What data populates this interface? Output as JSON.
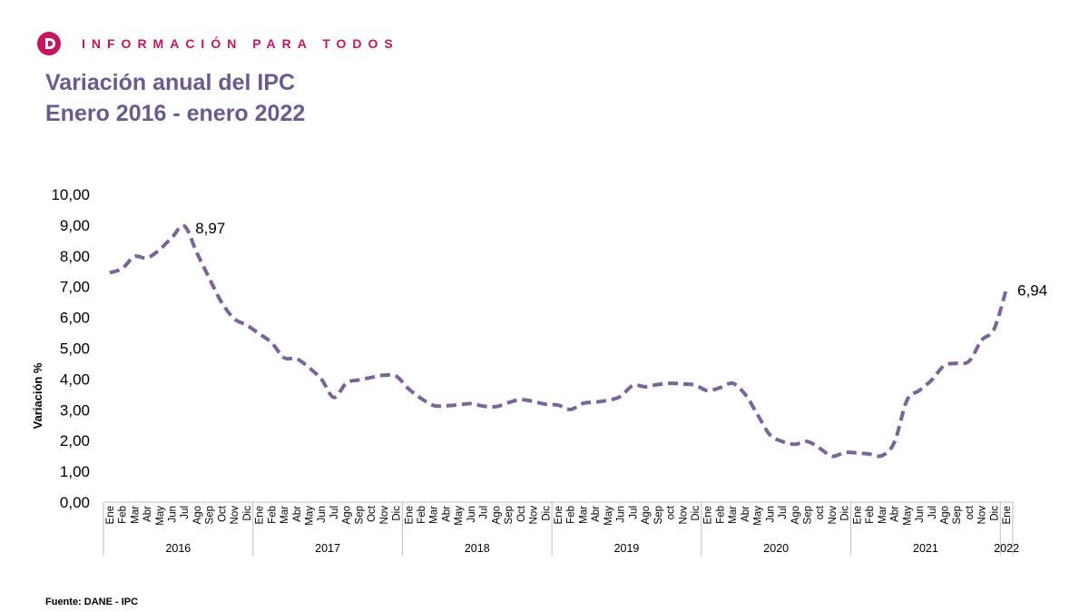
{
  "header": {
    "brand_text": "INFORMACIÓN PARA TODOS",
    "title_line1": "Variación anual del IPC",
    "title_line2": "Enero 2016 - enero 2022",
    "source": "Fuente: DANE - IPC"
  },
  "colors": {
    "brand": "#c2185b",
    "title": "#6b5a8e",
    "line": "#7b6499",
    "axis": "#bfbfbf",
    "text": "#000000"
  },
  "icons": {
    "logo": "dane-logo-icon"
  },
  "chart_data": {
    "type": "line",
    "title": "Variación anual del IPC",
    "subtitle": "Enero 2016 - enero 2022",
    "ylabel": "Variación %",
    "xlabel": "",
    "ylim": [
      0,
      10
    ],
    "yticks": [
      "0,00",
      "1,00",
      "2,00",
      "3,00",
      "4,00",
      "5,00",
      "6,00",
      "7,00",
      "8,00",
      "9,00",
      "10,00"
    ],
    "grid": false,
    "line_style": "dashed",
    "years": [
      {
        "label": "2016",
        "months": [
          "Ene",
          "Feb",
          "Mar",
          "Abr",
          "May",
          "Jun",
          "Jul",
          "Ago",
          "Sep",
          "Oct",
          "Nov",
          "Dic"
        ]
      },
      {
        "label": "2017",
        "months": [
          "Ene",
          "Feb",
          "Mar",
          "Abr",
          "May",
          "Jun",
          "Jul",
          "Ago",
          "Sep",
          "Oct",
          "Nov",
          "Dic"
        ]
      },
      {
        "label": "2018",
        "months": [
          "Ene",
          "Feb",
          "Mar",
          "Abr",
          "May",
          "Jun",
          "Jul",
          "Ago",
          "Sep",
          "Oct",
          "Nov",
          "Dic"
        ]
      },
      {
        "label": "2019",
        "months": [
          "Ene",
          "Feb",
          "Mar",
          "Abr",
          "May",
          "Jun",
          "Jul",
          "Ago",
          "Sep",
          "oct",
          "Nov",
          "Dic"
        ]
      },
      {
        "label": "2020",
        "months": [
          "Ene",
          "Feb",
          "Mar",
          "Abr",
          "May",
          "Jun",
          "Jul",
          "Ago",
          "Sep",
          "oct",
          "Nov",
          "Dic"
        ]
      },
      {
        "label": "2021",
        "months": [
          "Ene",
          "Feb",
          "Mar",
          "Abr",
          "May",
          "Jun",
          "Jul",
          "Ago",
          "Sep",
          "oct",
          "Nov",
          "Dic"
        ]
      },
      {
        "label": "2022",
        "months": [
          "Ene"
        ]
      }
    ],
    "values": [
      7.45,
      7.59,
      7.98,
      7.93,
      8.2,
      8.6,
      8.97,
      8.1,
      7.27,
      6.48,
      5.96,
      5.75,
      5.47,
      5.18,
      4.69,
      4.66,
      4.37,
      3.99,
      3.4,
      3.87,
      3.97,
      4.05,
      4.12,
      4.09,
      3.68,
      3.37,
      3.14,
      3.13,
      3.16,
      3.2,
      3.12,
      3.1,
      3.23,
      3.33,
      3.27,
      3.18,
      3.15,
      3.01,
      3.21,
      3.25,
      3.31,
      3.43,
      3.79,
      3.75,
      3.82,
      3.86,
      3.84,
      3.8,
      3.62,
      3.72,
      3.86,
      3.51,
      2.85,
      2.19,
      1.97,
      1.88,
      1.97,
      1.75,
      1.49,
      1.61,
      1.6,
      1.56,
      1.51,
      1.95,
      3.3,
      3.63,
      3.97,
      4.44,
      4.51,
      4.58,
      5.26,
      5.62,
      6.94
    ],
    "annotations": [
      {
        "index": 6,
        "label": "8,97"
      },
      {
        "index": 72,
        "label": "6,94"
      }
    ]
  }
}
